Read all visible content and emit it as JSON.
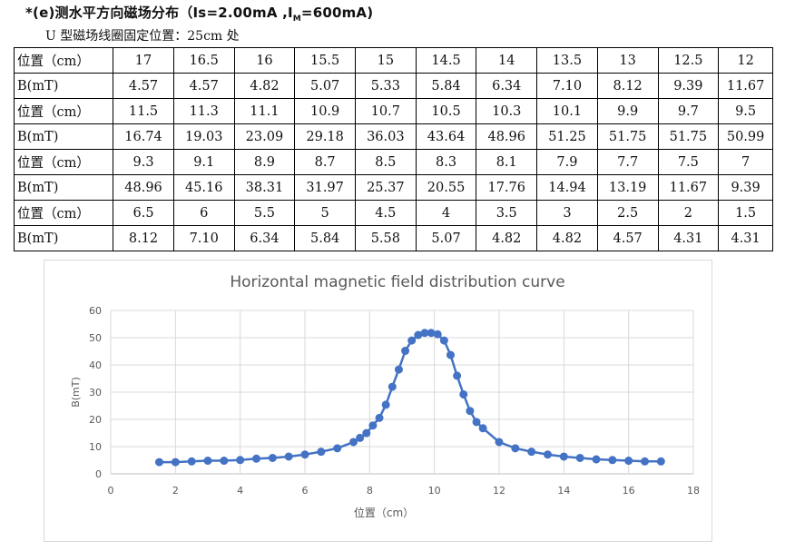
{
  "title": {
    "main": "*(e)测水平方向磁场分布（Is=2.00mA ,I",
    "sub": "M",
    "tail": "=600mA)"
  },
  "subtitle": "U 型磁场线圈固定位置：25cm 处",
  "table": {
    "rows": [
      [
        "位置（cm）",
        "17",
        "16.5",
        "16",
        "15.5",
        "15",
        "14.5",
        "14",
        "13.5",
        "13",
        "12.5",
        "12"
      ],
      [
        "B(mT)",
        "4.57",
        "4.57",
        "4.82",
        "5.07",
        "5.33",
        "5.84",
        "6.34",
        "7.10",
        "8.12",
        "9.39",
        "11.67"
      ],
      [
        "位置（cm）",
        "11.5",
        "11.3",
        "11.1",
        "10.9",
        "10.7",
        "10.5",
        "10.3",
        "10.1",
        "9.9",
        "9.7",
        "9.5"
      ],
      [
        "B(mT)",
        "16.74",
        "19.03",
        "23.09",
        "29.18",
        "36.03",
        "43.64",
        "48.96",
        "51.25",
        "51.75",
        "51.75",
        "50.99"
      ],
      [
        "位置（cm）",
        "9.3",
        "9.1",
        "8.9",
        "8.7",
        "8.5",
        "8.3",
        "8.1",
        "7.9",
        "7.7",
        "7.5",
        "7"
      ],
      [
        "B(mT)",
        "48.96",
        "45.16",
        "38.31",
        "31.97",
        "25.37",
        "20.55",
        "17.76",
        "14.94",
        "13.19",
        "11.67",
        "9.39"
      ],
      [
        "位置（cm）",
        "6.5",
        "6",
        "5.5",
        "5",
        "4.5",
        "4",
        "3.5",
        "3",
        "2.5",
        "2",
        "1.5"
      ],
      [
        "B(mT)",
        "8.12",
        "7.10",
        "6.34",
        "5.84",
        "5.58",
        "5.07",
        "4.82",
        "4.82",
        "4.57",
        "4.31",
        "4.31"
      ]
    ]
  },
  "chart_data": {
    "type": "line",
    "title": "Horizontal magnetic field distribution curve",
    "xlabel": "位置（cm）",
    "ylabel": "B(mT)",
    "xlim": [
      0,
      18
    ],
    "ylim": [
      0,
      60
    ],
    "xticks": [
      0,
      2,
      4,
      6,
      8,
      10,
      12,
      14,
      16,
      18
    ],
    "yticks": [
      0,
      10,
      20,
      30,
      40,
      50,
      60
    ],
    "grid": true,
    "legend": "none",
    "color": "#4472c4",
    "series": [
      {
        "x": [
          17,
          16.5,
          16,
          15.5,
          15,
          14.5,
          14,
          13.5,
          13,
          12.5,
          12,
          11.5,
          11.3,
          11.1,
          10.9,
          10.7,
          10.5,
          10.3,
          10.1,
          9.9,
          9.7,
          9.5,
          9.3,
          9.1,
          8.9,
          8.7,
          8.5,
          8.3,
          8.1,
          7.9,
          7.7,
          7.5,
          7,
          6.5,
          6,
          5.5,
          5,
          4.5,
          4,
          3.5,
          3,
          2.5,
          2,
          1.5
        ],
        "y": [
          4.57,
          4.57,
          4.82,
          5.07,
          5.33,
          5.84,
          6.34,
          7.1,
          8.12,
          9.39,
          11.67,
          16.74,
          19.03,
          23.09,
          29.18,
          36.03,
          43.64,
          48.96,
          51.25,
          51.75,
          51.75,
          50.99,
          48.96,
          45.16,
          38.31,
          31.97,
          25.37,
          20.55,
          17.76,
          14.94,
          13.19,
          11.67,
          9.39,
          8.12,
          7.1,
          6.34,
          5.84,
          5.58,
          5.07,
          4.82,
          4.82,
          4.57,
          4.31,
          4.31
        ]
      }
    ]
  }
}
